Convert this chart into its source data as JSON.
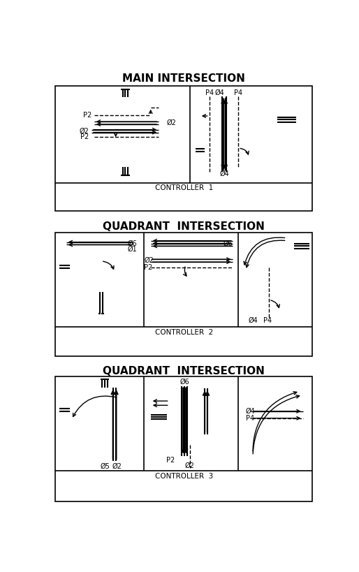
{
  "title1": "MAIN INTERSECTION",
  "title2": "QUADRANT  INTERSECTION",
  "title3": "QUADRANT  INTERSECTION",
  "ctrl1": "CONTROLLER  1",
  "ctrl2": "CONTROLLER  2",
  "ctrl3": "CONTROLLER  3",
  "bg_color": "#ffffff",
  "lc": "#000000",
  "figsize": [
    5.14,
    8.19
  ],
  "dpi": 100
}
